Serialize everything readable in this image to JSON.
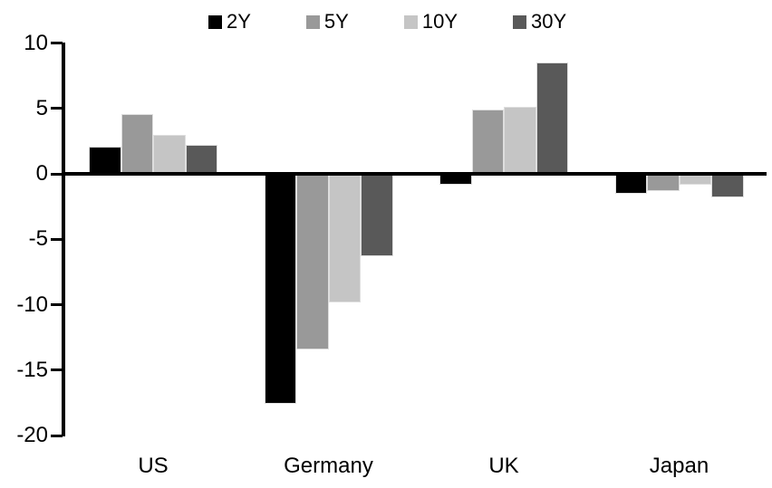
{
  "chart_data": {
    "type": "bar",
    "title": "",
    "categories": [
      "US",
      "Germany",
      "UK",
      "Japan"
    ],
    "series": [
      {
        "name": "2Y",
        "color": "#000000",
        "values": [
          2.1,
          -17.6,
          -0.8,
          -1.5
        ]
      },
      {
        "name": "5Y",
        "color": "#999999",
        "values": [
          4.6,
          -13.4,
          4.9,
          -1.3
        ]
      },
      {
        "name": "10Y",
        "color": "#c5c5c5",
        "values": [
          3.0,
          -9.8,
          5.1,
          -0.8
        ]
      },
      {
        "name": "30Y",
        "color": "#595959",
        "values": [
          2.2,
          -6.3,
          8.5,
          -1.8
        ]
      }
    ],
    "ylim": [
      -20,
      10
    ],
    "yticks": [
      10,
      5,
      0,
      -5,
      -10,
      -15,
      -20
    ],
    "xlabel": "",
    "ylabel": "",
    "legend_position": "top",
    "grid": false,
    "axis_color": "#000000",
    "background_color": "#ffffff"
  }
}
